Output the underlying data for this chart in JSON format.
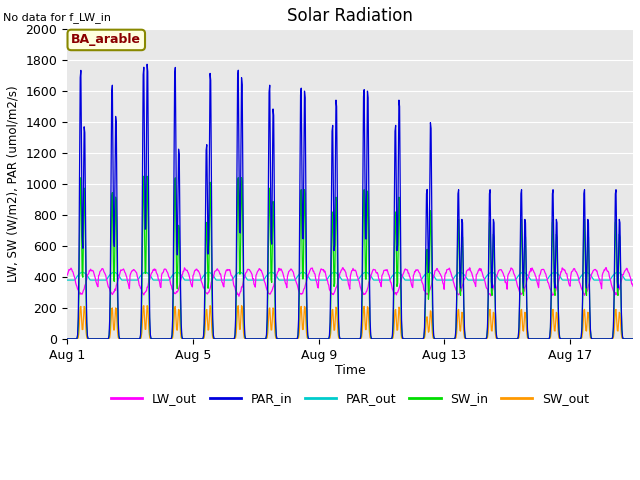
{
  "title": "Solar Radiation",
  "top_left_text": "No data for f_LW_in",
  "annotation_text": "BA_arable",
  "xlabel": "Time",
  "ylabel": "LW, SW (W/m2), PAR (umol/m2/s)",
  "ylim": [
    0,
    2000
  ],
  "yticks": [
    0,
    200,
    400,
    600,
    800,
    1000,
    1200,
    1400,
    1600,
    1800,
    2000
  ],
  "xtick_labels": [
    "Aug 1",
    "Aug 5",
    "Aug 9",
    "Aug 13",
    "Aug 17"
  ],
  "xtick_positions": [
    0,
    4,
    8,
    12,
    16
  ],
  "n_days": 18,
  "colors": {
    "LW_out": "#ff00ff",
    "PAR_in": "#0000dd",
    "PAR_out": "#00cccc",
    "SW_in": "#00dd00",
    "SW_out": "#ff9900"
  },
  "plot_bg_color": "#e8e8e8",
  "par_in_peaks": [
    1800,
    1420,
    1700,
    1490,
    1820,
    1840,
    1820,
    1270,
    1300,
    1780,
    1800,
    1750,
    1700,
    1540,
    1680,
    1660,
    1430,
    1600,
    1670,
    1660,
    1430,
    1600,
    1000,
    1450
  ],
  "sw_in_peaks": [
    1080,
    1010,
    980,
    950,
    1090,
    1090,
    1080,
    760,
    780,
    1050,
    1080,
    1080,
    1010,
    920,
    1000,
    1000,
    850,
    950,
    1000,
    990,
    850,
    950,
    600,
    860
  ],
  "sw_out_peaks": [
    220,
    220,
    210,
    210,
    225,
    225,
    220,
    200,
    200,
    225,
    225,
    225,
    210,
    210,
    220,
    220,
    200,
    215,
    220,
    218,
    200,
    215,
    150,
    190
  ],
  "par_out_base": 380,
  "lw_out_base": 370,
  "lw_out_amp": 80
}
